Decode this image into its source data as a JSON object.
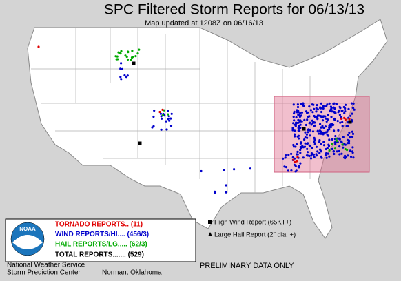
{
  "header": {
    "title": "SPC Filtered Storm Reports for 06/13/13",
    "subtitle": "Map updated at 1208Z on 06/16/13"
  },
  "legend": {
    "logo": "NOAA",
    "items": [
      {
        "label": "TORNADO REPORTS.. (11)",
        "color": "#e00000"
      },
      {
        "label": "WIND REPORTS/HI.... (456/3)",
        "color": "#0000cc"
      },
      {
        "label": "HAIL REPORTS/LG..... (62/3)",
        "color": "#00aa00"
      }
    ],
    "total": "TOTAL REPORTS....... (529)"
  },
  "key": {
    "items": [
      "High Wind Report (65KT+)",
      "Large Hail Report (2\" dia. +)"
    ]
  },
  "footer": {
    "agency": "National Weather Service",
    "center": "Storm Prediction Center",
    "location": "Norman, Oklahoma",
    "notice": "PRELIMINARY DATA ONLY"
  }
}
